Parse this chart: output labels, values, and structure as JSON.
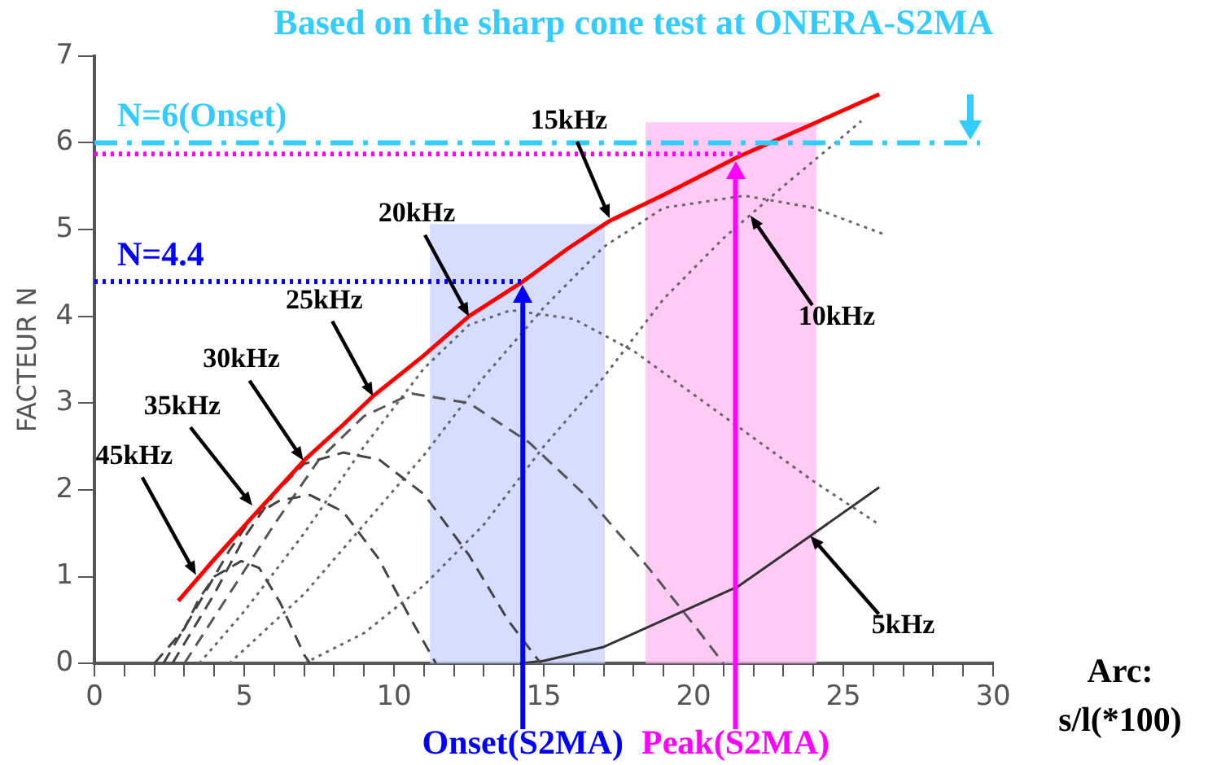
{
  "chart_data": {
    "type": "line",
    "title": "Based on the sharp cone test at ONERA-S2MA",
    "ylabel": "FACTEUR N",
    "xlabel": "Arc:\ns/l(*100)",
    "xlim": [
      0,
      30
    ],
    "ylim": [
      0,
      7
    ],
    "xticks": [
      0,
      {
        "value": 1,
        "label": null
      },
      {
        "value": 2,
        "label": null
      },
      {
        "value": 3,
        "label": null
      },
      {
        "value": 4,
        "label": null
      },
      5,
      {
        "value": 6,
        "label": null
      },
      {
        "value": 7,
        "label": null
      },
      {
        "value": 8,
        "label": null
      },
      {
        "value": 9,
        "label": null
      },
      10,
      {
        "value": 11,
        "label": null
      },
      {
        "value": 12,
        "label": null
      },
      {
        "value": 13,
        "label": null
      },
      {
        "value": 14,
        "label": null
      },
      15,
      {
        "value": 16,
        "label": null
      },
      {
        "value": 17,
        "label": null
      },
      {
        "value": 18,
        "label": null
      },
      {
        "value": 19,
        "label": null
      },
      20,
      {
        "value": 21,
        "label": null
      },
      {
        "value": 22,
        "label": null
      },
      {
        "value": 23,
        "label": null
      },
      {
        "value": 24,
        "label": null
      },
      25,
      {
        "value": 26,
        "label": null
      },
      {
        "value": 27,
        "label": null
      },
      {
        "value": 28,
        "label": null
      },
      {
        "value": 29,
        "label": null
      },
      30
    ],
    "yticks": [
      0,
      1,
      2,
      3,
      4,
      5,
      6,
      7
    ],
    "grid": false,
    "legend": false,
    "marker": "none",
    "series": [
      {
        "color": "#ff0000",
        "line_style": "solid",
        "x": [
          2.8,
          4,
          5.2,
          7,
          8.3,
          9.3,
          11,
          12.5,
          14.3,
          15.8,
          17.2,
          19,
          21.5,
          24,
          26.2
        ],
        "values": [
          0.72,
          1.2,
          1.66,
          2.34,
          2.75,
          3.08,
          3.55,
          4.0,
          4.4,
          4.78,
          5.1,
          5.4,
          5.84,
          6.22,
          6.56
        ]
      },
      {
        "color": "#444444",
        "line_style": "dashed",
        "x": [
          2,
          3,
          3.5,
          4,
          4.9,
          5.5,
          6.2,
          7,
          7.2
        ],
        "values": [
          0,
          0.4,
          0.75,
          1.0,
          1.18,
          1.1,
          0.7,
          0.1,
          0
        ]
      },
      {
        "color": "#444444",
        "line_style": "dashed",
        "x": [
          2.3,
          3.5,
          4.5,
          5.3,
          6.2,
          7.2,
          8.3,
          9.5,
          10.5,
          11.4
        ],
        "values": [
          0,
          0.7,
          1.3,
          1.7,
          1.88,
          1.94,
          1.75,
          1.2,
          0.55,
          0
        ]
      },
      {
        "color": "#444444",
        "line_style": "dashed",
        "x": [
          2.6,
          4,
          5,
          6,
          7,
          8.3,
          9.5,
          11,
          12.5,
          13.8,
          14.9
        ],
        "values": [
          0,
          0.8,
          1.45,
          1.95,
          2.3,
          2.43,
          2.35,
          1.95,
          1.25,
          0.5,
          0
        ]
      },
      {
        "color": "#555555",
        "line_style": "dashed",
        "x": [
          3,
          4.5,
          6,
          7.5,
          9,
          10.6,
          12.5,
          14.5,
          16.5,
          18.5,
          20,
          21
        ],
        "values": [
          0,
          0.8,
          1.6,
          2.35,
          2.85,
          3.11,
          3.0,
          2.55,
          1.9,
          1.1,
          0.45,
          0
        ]
      },
      {
        "color": "#666666",
        "line_style": "dotted",
        "x": [
          3.5,
          5,
          7,
          9,
          11,
          12.5,
          13.9,
          16,
          18,
          20,
          22,
          24,
          26.2
        ],
        "values": [
          0,
          0.6,
          1.5,
          2.5,
          3.4,
          3.9,
          4.07,
          3.97,
          3.6,
          3.1,
          2.6,
          2.1,
          1.6
        ]
      },
      {
        "color": "#666666",
        "line_style": "dotted",
        "x": [
          4.5,
          7,
          9,
          11,
          13,
          15,
          17,
          19,
          21.7,
          24,
          26.4
        ],
        "values": [
          0,
          0.8,
          1.6,
          2.4,
          3.3,
          4.1,
          4.8,
          5.25,
          5.39,
          5.25,
          4.94
        ]
      },
      {
        "color": "#666666",
        "line_style": "dotted",
        "x": [
          7,
          9,
          11,
          13,
          15,
          17,
          19,
          21,
          22,
          23,
          25.6
        ],
        "values": [
          0,
          0.35,
          0.9,
          1.6,
          2.5,
          3.3,
          4.2,
          4.9,
          5.2,
          5.5,
          6.25
        ]
      },
      {
        "color": "#333333",
        "line_style": "solid",
        "x": [
          14.2,
          15,
          17,
          19,
          21.5,
          23.9,
          26.2
        ],
        "values": [
          0,
          0.03,
          0.19,
          0.5,
          0.89,
          1.47,
          2.03
        ]
      }
    ],
    "ref_lines": [
      {
        "axis": "y",
        "value": 6,
        "label": "N=6(Onset)",
        "color": "#33ccff",
        "line_style": "dashed"
      },
      {
        "axis": "y",
        "value": 5.87,
        "label": null,
        "color": "#ff00ff",
        "line_style": "dotted"
      },
      {
        "axis": "y",
        "value": 4.4,
        "label": "N=4.4",
        "color": "#0000ff",
        "line_style": "dotted"
      },
      {
        "axis": "x",
        "value": 14.3,
        "label": "Onset(S2MA)",
        "color": "#0000ff",
        "line_style": "solid"
      },
      {
        "axis": "x",
        "value": 21.4,
        "label": "Peak(S2MA)",
        "color": "#ff00ff",
        "line_style": "solid"
      }
    ],
    "bands": [
      {
        "axis": "x",
        "from": 11.2,
        "to": 17.04,
        "label": null,
        "color": "#c8d2ff"
      },
      {
        "axis": "x",
        "from": 18.4,
        "to": 24.1,
        "label": null,
        "color": "#ffb8f0"
      }
    ],
    "annotations": [
      {
        "text": "15kHz",
        "x": 17.2,
        "y": 5.13
      },
      {
        "text": "20kHz",
        "x": 12.5,
        "y": 4.0
      },
      {
        "text": "25kHz",
        "x": 9.3,
        "y": 3.08
      },
      {
        "text": "30kHz",
        "x": 6.97,
        "y": 2.34
      },
      {
        "text": "35kHz",
        "x": 5.27,
        "y": 1.82
      },
      {
        "text": "45kHz",
        "x": 3.39,
        "y": 1.02
      },
      {
        "text": "10kHz",
        "x": 21.9,
        "y": 5.16
      },
      {
        "text": "5kHz",
        "x": 23.9,
        "y": 1.47
      }
    ]
  }
}
